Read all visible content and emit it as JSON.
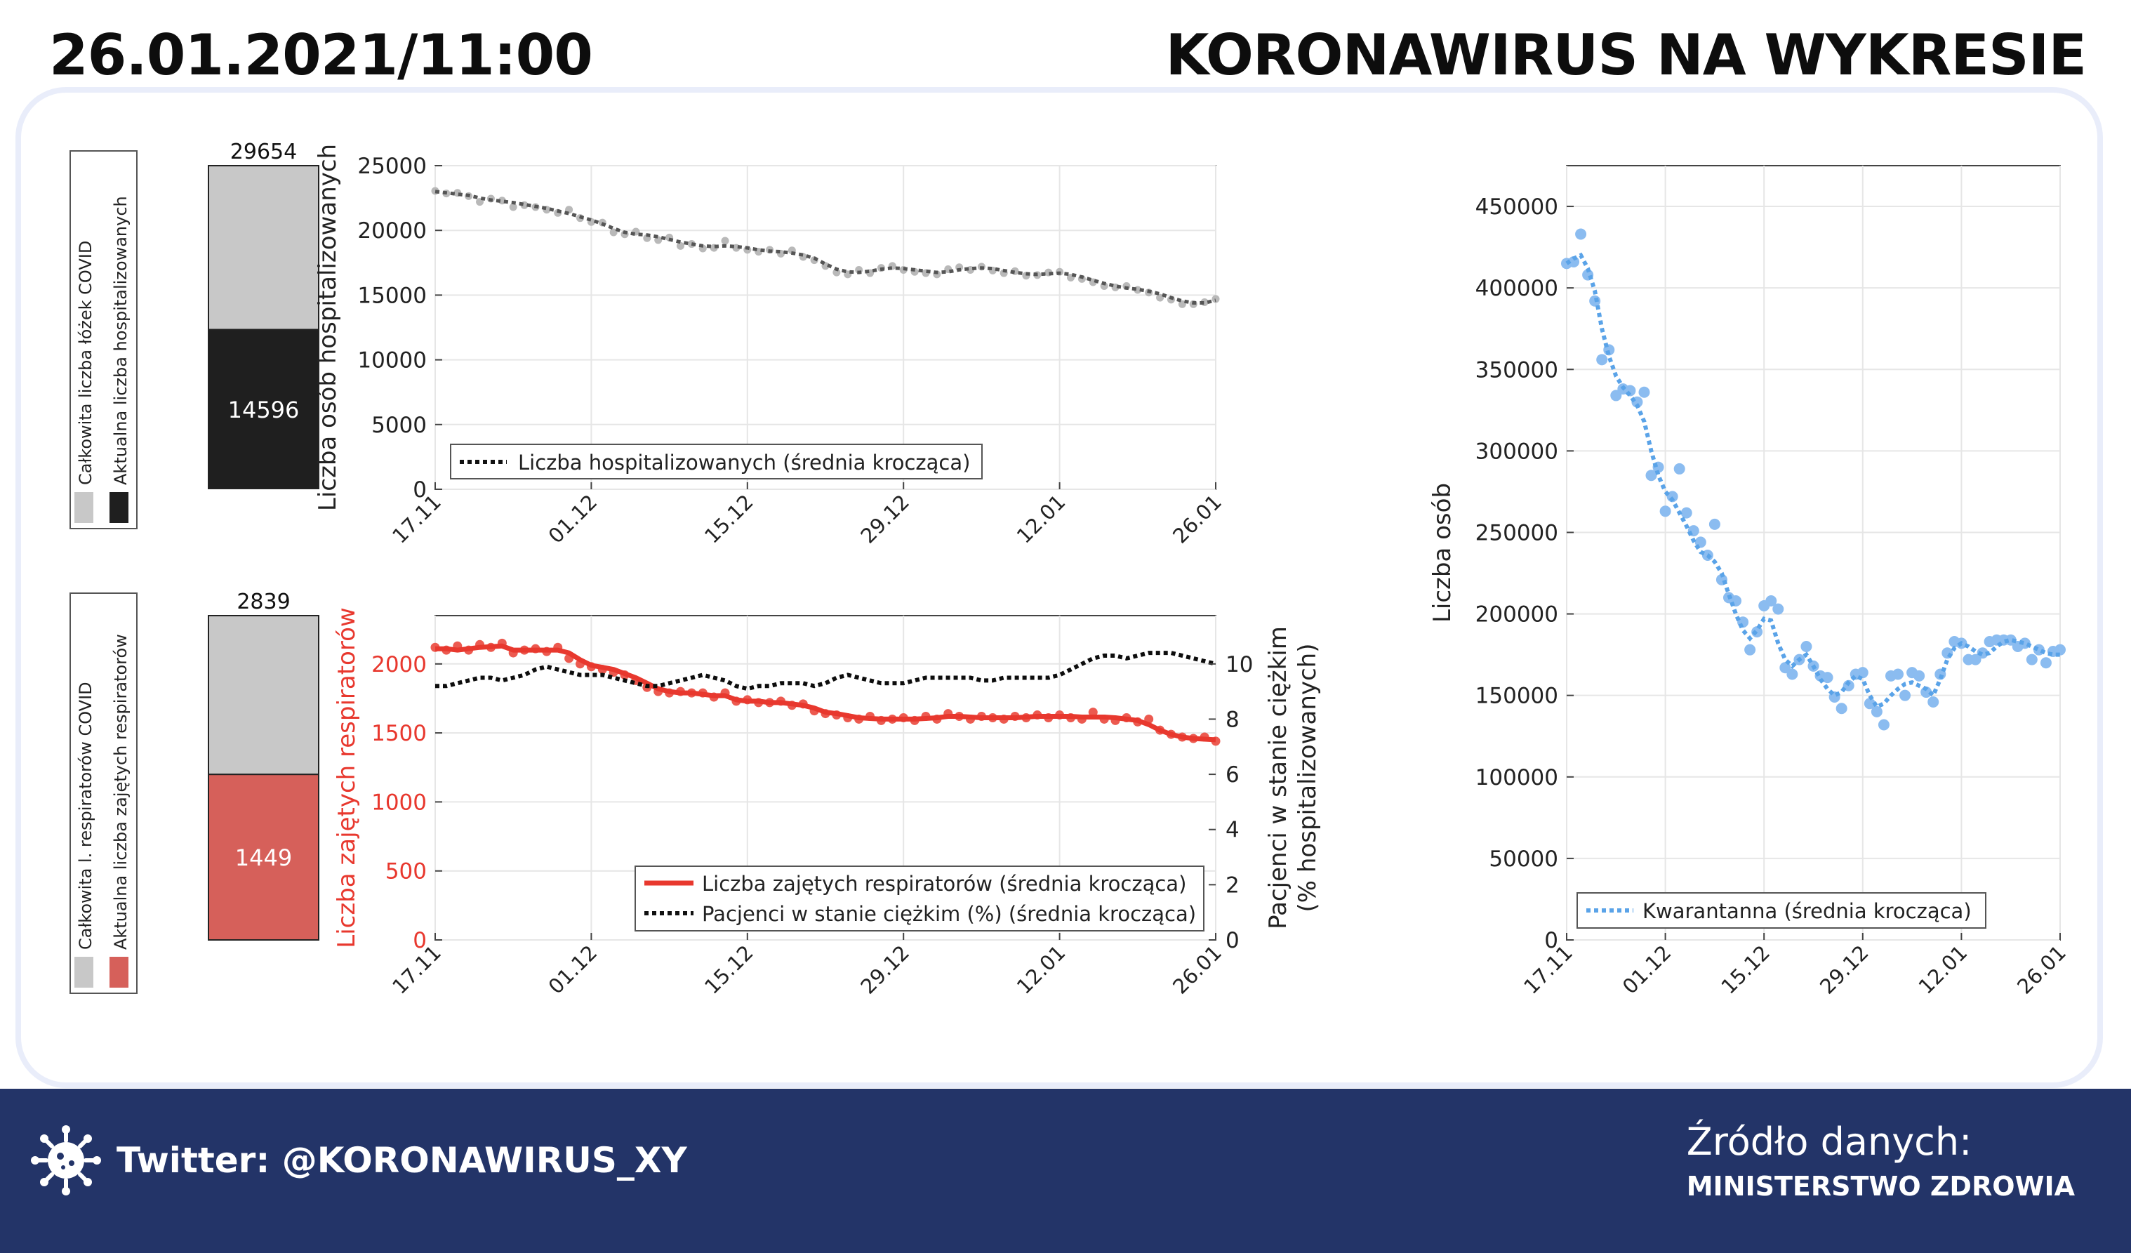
{
  "header": {
    "date_time": "26.01.2021/11:00",
    "title": "KORONAWIRUS NA WYKRESIE"
  },
  "footer": {
    "twitter": "Twitter: @KORONAWIRUS_XY",
    "source_label": "Źródło danych:",
    "source_value": "MINISTERSTWO ZDROWIA",
    "icon": "virus-icon"
  },
  "colors": {
    "dark": "#1f1f1f",
    "gray_bar": "#c8c8c8",
    "red": "#e8382e",
    "red_bar": "#d6605a",
    "blue": "#5aa3e8",
    "footer_bg": "#233468",
    "panel_border": "#e9edfa"
  },
  "chart_data": [
    {
      "type": "bar",
      "stacked": true,
      "legend": [
        "Całkowita liczba łóżek COVID",
        "Aktualna liczba hospitalizowanych"
      ],
      "total": 29654,
      "current": 14596
    },
    {
      "type": "line",
      "ylabel": "Liczba osób hospitalizowanych",
      "yticks": [
        "0",
        "5000",
        "10000",
        "15000",
        "20000",
        "25000"
      ],
      "ylim": [
        0,
        25000
      ],
      "xticks": [
        "17.11",
        "01.12",
        "15.12",
        "29.12",
        "12.01",
        "26.01"
      ],
      "xrange_days": [
        0,
        70
      ],
      "grid": true,
      "legend_position": "bottom-left",
      "series": [
        {
          "name": "Liczba hospitalizowanych (średnia krocząca)",
          "style": "dotted",
          "values": [
            23000,
            22900,
            22800,
            22700,
            22500,
            22350,
            22250,
            22150,
            22000,
            21850,
            21700,
            21500,
            21300,
            21050,
            20800,
            20500,
            20150,
            19850,
            19700,
            19650,
            19500,
            19300,
            19100,
            18950,
            18800,
            18750,
            18800,
            18750,
            18650,
            18500,
            18400,
            18350,
            18250,
            18100,
            17850,
            17400,
            17000,
            16800,
            16750,
            16850,
            17000,
            17100,
            17050,
            16950,
            16850,
            16750,
            16800,
            16950,
            17050,
            17100,
            17050,
            16900,
            16750,
            16650,
            16600,
            16650,
            16700,
            16600,
            16400,
            16150,
            15900,
            15700,
            15550,
            15450,
            15300,
            15100,
            14800,
            14550,
            14400,
            14400,
            14600
          ],
          "raw": [
            23050,
            22850,
            22900,
            22650,
            22200,
            22450,
            22300,
            21800,
            21950,
            21800,
            21600,
            21350,
            21600,
            20950,
            20650,
            20600,
            19850,
            19700,
            19900,
            19400,
            19250,
            19450,
            18800,
            18950,
            18600,
            18650,
            19200,
            18650,
            18500,
            18350,
            18500,
            18200,
            18450,
            17950,
            17700,
            17250,
            16750,
            16600,
            16950,
            16700,
            17100,
            17250,
            16950,
            16800,
            16700,
            16600,
            17000,
            17150,
            16950,
            17200,
            16900,
            16700,
            16850,
            16500,
            16550,
            16750,
            16800,
            16350,
            16250,
            16000,
            15700,
            15600,
            15700,
            15400,
            15200,
            14800,
            14650,
            14300,
            14300,
            14450,
            14700
          ]
        }
      ]
    },
    {
      "type": "bar",
      "stacked": true,
      "legend": [
        "Całkowita l. respiratorów COVID",
        "Aktualna liczba zajętych respiratorów"
      ],
      "total": 2839,
      "current": 1449
    },
    {
      "type": "line",
      "dual_axis": true,
      "ylabel": "Liczba zajętych respiratorów",
      "ylabel_right": "Pacjenci w stanie ciężkim\n(% hospitalizowanych)",
      "yticks": [
        "0",
        "500",
        "1000",
        "1500",
        "2000"
      ],
      "yticks_right": [
        "0",
        "2",
        "4",
        "6",
        "8",
        "10"
      ],
      "ylim": [
        0,
        2350
      ],
      "ylim_right": [
        0,
        11.75
      ],
      "xticks": [
        "17.11",
        "01.12",
        "15.12",
        "29.12",
        "12.01",
        "26.01"
      ],
      "xrange_days": [
        0,
        70
      ],
      "grid": true,
      "legend_position": "bottom-right",
      "series": [
        {
          "name": "Liczba zajętych respiratorów (średnia krocząca)",
          "color": "#e8382e",
          "axis": "left",
          "values": [
            2110,
            2110,
            2100,
            2110,
            2120,
            2125,
            2130,
            2100,
            2100,
            2100,
            2100,
            2100,
            2080,
            2030,
            1990,
            1975,
            1960,
            1930,
            1900,
            1860,
            1820,
            1800,
            1790,
            1790,
            1780,
            1770,
            1770,
            1740,
            1730,
            1730,
            1720,
            1720,
            1710,
            1700,
            1680,
            1650,
            1640,
            1625,
            1610,
            1605,
            1600,
            1600,
            1600,
            1600,
            1605,
            1610,
            1620,
            1620,
            1615,
            1610,
            1610,
            1610,
            1610,
            1615,
            1620,
            1620,
            1620,
            1620,
            1615,
            1615,
            1615,
            1610,
            1600,
            1590,
            1560,
            1520,
            1490,
            1470,
            1460,
            1455,
            1450
          ],
          "raw": [
            2120,
            2100,
            2130,
            2100,
            2140,
            2120,
            2150,
            2080,
            2100,
            2110,
            2090,
            2120,
            2040,
            2000,
            1980,
            1960,
            1940,
            1920,
            1880,
            1830,
            1800,
            1790,
            1800,
            1790,
            1790,
            1760,
            1790,
            1730,
            1740,
            1720,
            1720,
            1730,
            1700,
            1710,
            1660,
            1640,
            1630,
            1610,
            1600,
            1620,
            1590,
            1600,
            1610,
            1590,
            1620,
            1600,
            1640,
            1620,
            1600,
            1620,
            1610,
            1600,
            1620,
            1610,
            1630,
            1610,
            1630,
            1610,
            1600,
            1650,
            1600,
            1590,
            1610,
            1580,
            1600,
            1520,
            1490,
            1470,
            1460,
            1470,
            1440
          ]
        },
        {
          "name": "Pacjenci w stanie ciężkim (%) (średnia krocząca)",
          "color": "#0d0d0d",
          "axis": "right",
          "style": "dotted",
          "values": [
            9.2,
            9.2,
            9.3,
            9.4,
            9.5,
            9.5,
            9.4,
            9.5,
            9.6,
            9.8,
            9.9,
            9.8,
            9.7,
            9.6,
            9.6,
            9.6,
            9.5,
            9.4,
            9.3,
            9.2,
            9.2,
            9.3,
            9.4,
            9.5,
            9.6,
            9.5,
            9.4,
            9.2,
            9.1,
            9.2,
            9.2,
            9.3,
            9.3,
            9.3,
            9.2,
            9.3,
            9.5,
            9.6,
            9.5,
            9.4,
            9.3,
            9.3,
            9.3,
            9.4,
            9.5,
            9.5,
            9.5,
            9.5,
            9.5,
            9.4,
            9.4,
            9.5,
            9.5,
            9.5,
            9.5,
            9.5,
            9.6,
            9.8,
            10.0,
            10.2,
            10.3,
            10.3,
            10.2,
            10.3,
            10.4,
            10.4,
            10.4,
            10.3,
            10.2,
            10.1,
            10.0
          ]
        }
      ]
    },
    {
      "type": "scatter_line",
      "ylabel": "Liczba osób",
      "yticks": [
        "0",
        "50000",
        "100000",
        "150000",
        "200000",
        "250000",
        "300000",
        "350000",
        "400000",
        "450000"
      ],
      "ylim": [
        0,
        475000
      ],
      "xticks": [
        "17.11",
        "01.12",
        "15.12",
        "29.12",
        "12.01",
        "26.01"
      ],
      "xrange_days": [
        0,
        70
      ],
      "grid": true,
      "legend_position": "bottom-left",
      "series": [
        {
          "name": "Kwarantanna (średnia krocząca)",
          "color": "#5aa3e8",
          "style": "dotted",
          "values": [
            415000,
            418000,
            420000,
            412000,
            398000,
            375000,
            358000,
            346000,
            339000,
            334000,
            328000,
            318000,
            300000,
            285000,
            275000,
            270000,
            262000,
            254000,
            245000,
            238000,
            236000,
            232000,
            225000,
            212000,
            200000,
            190000,
            185000,
            190000,
            197000,
            196000,
            182000,
            172000,
            168000,
            172000,
            175000,
            168000,
            160000,
            154000,
            150000,
            152000,
            158000,
            162000,
            160000,
            150000,
            143000,
            145000,
            150000,
            154000,
            157000,
            158000,
            156000,
            154000,
            150000,
            160000,
            172000,
            179000,
            182000,
            180000,
            177000,
            175000,
            176000,
            180000,
            183000,
            184000,
            183000,
            182000,
            180000,
            178000,
            176000,
            175000,
            175000
          ],
          "raw": [
            415000,
            416000,
            433000,
            408000,
            392000,
            356000,
            362000,
            334000,
            338000,
            337000,
            330000,
            336000,
            285000,
            290000,
            263000,
            272000,
            289000,
            262000,
            251000,
            244000,
            236000,
            255000,
            221000,
            210000,
            208000,
            195000,
            178000,
            189000,
            205000,
            208000,
            203000,
            167000,
            163000,
            172000,
            180000,
            168000,
            162000,
            161000,
            149000,
            142000,
            156000,
            163000,
            164000,
            145000,
            140000,
            132000,
            162000,
            163000,
            150000,
            164000,
            162000,
            152000,
            146000,
            163000,
            176000,
            183000,
            182000,
            172000,
            172000,
            176000,
            183000,
            184000,
            184000,
            184000,
            180000,
            182000,
            172000,
            178000,
            170000,
            177000,
            178000
          ]
        }
      ]
    }
  ]
}
